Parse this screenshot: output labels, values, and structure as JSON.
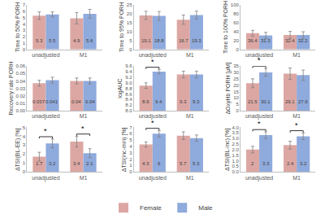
{
  "chart_data": [
    {
      "type": "bar",
      "y_label": "Time to 50% PORH",
      "categories": [
        "unadjusted",
        "M1"
      ],
      "series": [
        {
          "name": "Female",
          "color": "#dca7a3",
          "values": [
            5.3,
            4.9
          ],
          "errors": [
            0.6,
            0.9
          ]
        },
        {
          "name": "Male",
          "color": "#8faadc",
          "values": [
            5.5,
            5.6
          ],
          "errors": [
            0.4,
            0.7
          ]
        }
      ],
      "ylim": [
        0,
        7
      ],
      "yticks": [
        0,
        1,
        2,
        3,
        4,
        5,
        6,
        7
      ],
      "data_labels": true,
      "legend": "bottom"
    },
    {
      "type": "bar",
      "y_label": "Time to 95% PORH",
      "categories": [
        "unadjusted",
        "M1"
      ],
      "series": [
        {
          "name": "Female",
          "color": "#dca7a3",
          "values": [
            19.1,
            16.7
          ],
          "errors": [
            2.3,
            2.6
          ]
        },
        {
          "name": "Male",
          "color": "#8faadc",
          "values": [
            18.8,
            19.3
          ],
          "errors": [
            2.5,
            2.2
          ]
        }
      ],
      "ylim": [
        0,
        25
      ],
      "yticks": [
        0,
        5,
        10,
        15,
        20,
        25
      ],
      "data_labels": true
    },
    {
      "type": "bar",
      "y_label": "Time to 100% PORH",
      "categories": [
        "unadjusted",
        "M1"
      ],
      "series": [
        {
          "name": "Female",
          "color": "#dca7a3",
          "values": [
            36.4,
            32.4
          ],
          "errors": [
            6.5,
            8.0
          ]
        },
        {
          "name": "Male",
          "color": "#8faadc",
          "values": [
            31.3,
            32.2
          ],
          "errors": [
            7.0,
            7.5
          ]
        }
      ],
      "ylim": [
        0,
        100
      ],
      "yticks": [
        0,
        20,
        40,
        60,
        80,
        100
      ],
      "data_labels": true
    },
    {
      "type": "bar",
      "y_label": "Recovery rate PORH",
      "categories": [
        "unadjusted",
        "M1"
      ],
      "series": [
        {
          "name": "Female",
          "color": "#dca7a3",
          "values": [
            0.037,
            0.04
          ],
          "errors": [
            0.004,
            0.004
          ]
        },
        {
          "name": "Male",
          "color": "#8faadc",
          "values": [
            0.041,
            0.04
          ],
          "errors": [
            0.004,
            0.004
          ]
        }
      ],
      "ylim": [
        0,
        0.06
      ],
      "yticks": [
        {
          "value": 0,
          "label": "0.00"
        },
        0.01,
        0.02,
        0.03,
        0.04,
        0.05,
        0.06
      ],
      "data_labels": true
    },
    {
      "type": "bar",
      "y_label": "logAUC",
      "categories": [
        "unadjusted",
        "M1"
      ],
      "series": [
        {
          "name": "Female",
          "color": "#dca7a3",
          "values": [
            8.9,
            9.3
          ],
          "errors": [
            0.1,
            0.12
          ]
        },
        {
          "name": "Male",
          "color": "#8faadc",
          "values": [
            9.4,
            9.3
          ],
          "errors": [
            0.08,
            0.12
          ]
        }
      ],
      "ylim": [
        8,
        9.6
      ],
      "yticks": [
        {
          "value": 8,
          "label": "8.0"
        },
        8.2,
        8.4,
        8.6,
        8.8,
        {
          "value": 9,
          "label": "9.0"
        },
        9.2,
        9.4,
        9.6
      ],
      "data_labels": true,
      "annotations": [
        {
          "category": "unadjusted",
          "text": "*"
        }
      ]
    },
    {
      "type": "bar",
      "y_label": "ΔOxyHb PORH [μM]",
      "categories": [
        "unadjusted",
        "M1"
      ],
      "series": [
        {
          "name": "Female",
          "color": "#dca7a3",
          "values": [
            21.5,
            29.1
          ],
          "errors": [
            3.5,
            4.5
          ]
        },
        {
          "name": "Male",
          "color": "#8faadc",
          "values": [
            30.1,
            27.9
          ],
          "errors": [
            3.0,
            4.0
          ]
        }
      ],
      "ylim": [
        0,
        35
      ],
      "yticks": [
        0,
        5,
        10,
        15,
        20,
        25,
        30,
        35
      ],
      "data_labels": true,
      "annotations": [
        {
          "category": "unadjusted",
          "text": "*"
        }
      ]
    },
    {
      "type": "bar",
      "y_label": "ΔTSI(BL-EE) [%]",
      "categories": [
        "unadjusted",
        "M1"
      ],
      "series": [
        {
          "name": "Female",
          "color": "#dca7a3",
          "values": [
            1.7,
            3.4
          ],
          "errors": [
            0.5,
            0.6
          ]
        },
        {
          "name": "Male",
          "color": "#8faadc",
          "values": [
            3.2,
            2.1
          ],
          "errors": [
            0.5,
            0.5
          ]
        }
      ],
      "ylim": [
        0,
        5
      ],
      "yticks": [
        0,
        1,
        2,
        3,
        4,
        5
      ],
      "data_labels": true,
      "annotations": [
        {
          "category": "unadjusted",
          "text": "*"
        },
        {
          "category": "M1",
          "text": "*"
        }
      ]
    },
    {
      "type": "bar",
      "y_label": "ΔTSI(inc-min) [%]",
      "categories": [
        "unadjusted",
        "M1"
      ],
      "series": [
        {
          "name": "Female",
          "color": "#dca7a3",
          "values": [
            4.3,
            5.7
          ],
          "errors": [
            0.4,
            0.6
          ]
        },
        {
          "name": "Male",
          "color": "#8faadc",
          "values": [
            6.0,
            5.3
          ],
          "errors": [
            0.5,
            0.5
          ]
        }
      ],
      "ylim": [
        0,
        7
      ],
      "yticks": [
        0,
        1,
        2,
        3,
        4,
        5,
        6,
        7
      ],
      "data_labels": true,
      "annotations": [
        {
          "category": "unadjusted",
          "text": "*"
        }
      ]
    },
    {
      "type": "bar",
      "y_label": "ΔTSI(BL-inc) [%]",
      "categories": [
        "unadjusted",
        "M1"
      ],
      "series": [
        {
          "name": "Female",
          "color": "#dca7a3",
          "values": [
            2.0,
            2.4
          ],
          "errors": [
            0.3,
            0.35
          ]
        },
        {
          "name": "Male",
          "color": "#8faadc",
          "values": [
            3.3,
            3.2
          ],
          "errors": [
            0.3,
            0.3
          ]
        }
      ],
      "ylim": [
        0,
        4
      ],
      "yticks": [
        {
          "value": 0,
          "label": "0.0"
        },
        0.5,
        {
          "value": 1,
          "label": "1.0"
        },
        1.5,
        {
          "value": 2,
          "label": "2.0"
        },
        2.5,
        {
          "value": 3,
          "label": "3.0"
        },
        3.5,
        {
          "value": 4,
          "label": "4.0"
        }
      ],
      "data_labels": true,
      "annotations": [
        {
          "category": "unadjusted",
          "text": "*"
        },
        {
          "category": "M1",
          "text": "*"
        }
      ]
    }
  ]
}
